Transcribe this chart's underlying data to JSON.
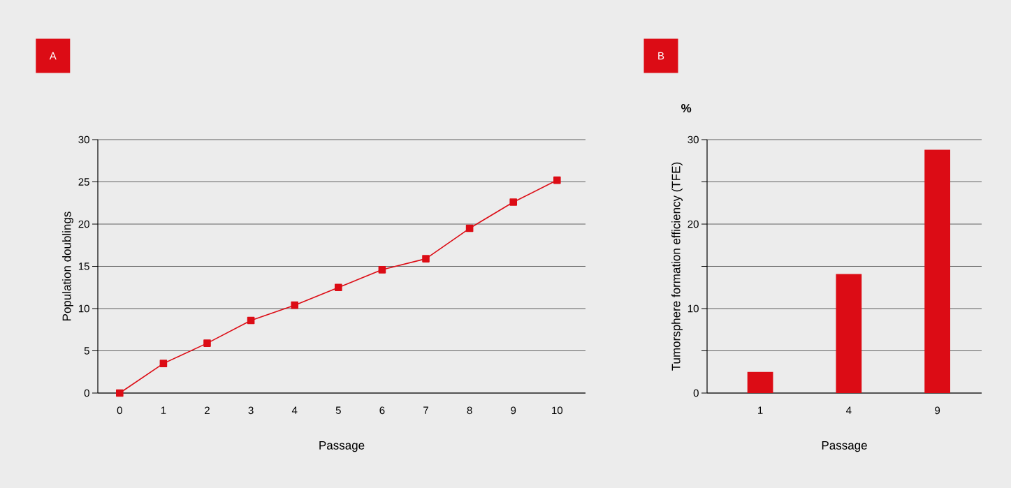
{
  "chart_data": [
    {
      "type": "line",
      "title": "A",
      "xlabel": "Passage",
      "ylabel": "Population doublings",
      "categories": [
        "0",
        "1",
        "2",
        "3",
        "4",
        "5",
        "6",
        "7",
        "8",
        "9",
        "10"
      ],
      "values": [
        0,
        3.5,
        5.9,
        8.6,
        10.4,
        12.5,
        14.6,
        15.9,
        19.5,
        22.6,
        25.2
      ],
      "color": "#dc0c15",
      "marker": "square",
      "ylim": [
        0,
        30
      ],
      "yticks": [
        0,
        5,
        10,
        15,
        20,
        25,
        30
      ],
      "grid": "y"
    },
    {
      "type": "bar",
      "title": "B",
      "xlabel": "Passage",
      "ylabel": "Tumorsphere formation efficiency (TFE)",
      "categories": [
        "1",
        "4",
        "9"
      ],
      "values": [
        2.5,
        14.1,
        28.8
      ],
      "color": "#dc0c15",
      "ylim": [
        0,
        30
      ],
      "yticks": [
        0,
        {
          "value": 5,
          "label": null
        },
        10,
        {
          "value": 15,
          "label": null
        },
        20,
        {
          "value": 25,
          "label": null
        },
        30
      ],
      "grid": "y",
      "annotations": [
        "%"
      ]
    }
  ]
}
